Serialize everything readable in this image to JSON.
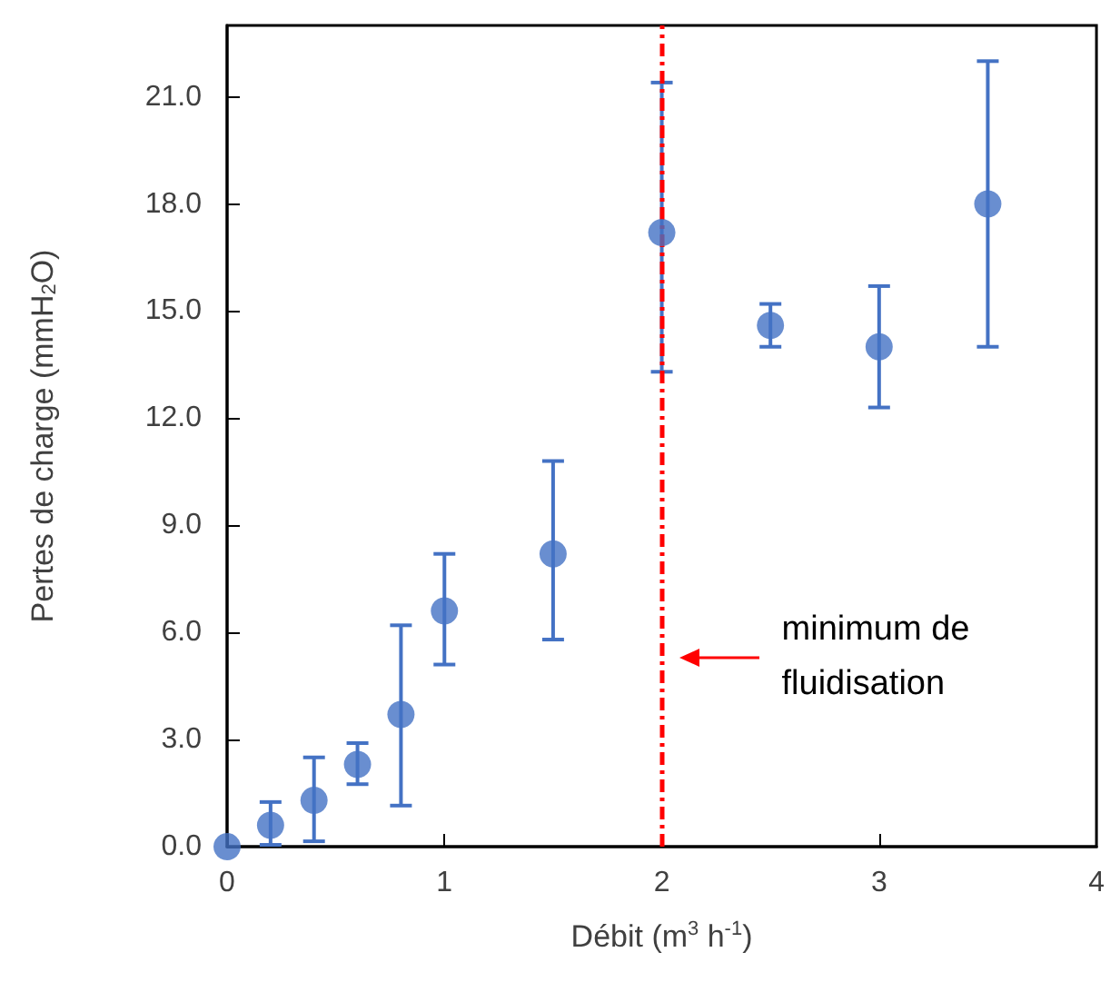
{
  "chart_data": {
    "type": "scatter",
    "xlabel": "Débit (m$^{3}$ h$^{-1}$)",
    "ylabel": "Pertes de charge (mmH$_{2}$O)",
    "x": [
      0,
      0.2,
      0.4,
      0.6,
      0.8,
      1,
      1.5,
      2,
      2.5,
      3,
      3.5
    ],
    "series": [
      {
        "color": "#4472c4",
        "values": [
          0,
          0.6,
          1.3,
          2.3,
          3.7,
          6.6,
          8.2,
          17.2,
          14.6,
          14.0,
          18.0
        ],
        "errors": [
          null,
          [
            0.05,
            1.25
          ],
          [
            0.15,
            2.5
          ],
          [
            1.75,
            2.9
          ],
          [
            1.15,
            6.2
          ],
          [
            5.1,
            8.2
          ],
          [
            5.8,
            10.8
          ],
          [
            13.3,
            21.4
          ],
          [
            14.0,
            15.2
          ],
          [
            12.3,
            15.7
          ],
          [
            14.0,
            22.0
          ]
        ]
      }
    ],
    "marker": "circle",
    "xlim": [
      0,
      4
    ],
    "xticks": [
      0,
      1,
      2,
      3,
      4
    ],
    "ylim": [
      0,
      23
    ],
    "yticks": [
      {
        "value": 0,
        "label": "0.0"
      },
      {
        "value": 3,
        "label": "3.0"
      },
      {
        "value": 6,
        "label": "6.0"
      },
      {
        "value": 9,
        "label": "9.0"
      },
      {
        "value": 12,
        "label": "12.0"
      },
      {
        "value": 15,
        "label": "15.0"
      },
      {
        "value": 18,
        "label": "18.0"
      },
      {
        "value": 21,
        "label": "21.0"
      }
    ],
    "grid": false,
    "ref_lines": [
      {
        "axis": "x",
        "value": 2,
        "color": "#ff0000",
        "line_style": "dashed"
      }
    ],
    "annotations": [
      "minimum de\nfluidisation"
    ]
  }
}
